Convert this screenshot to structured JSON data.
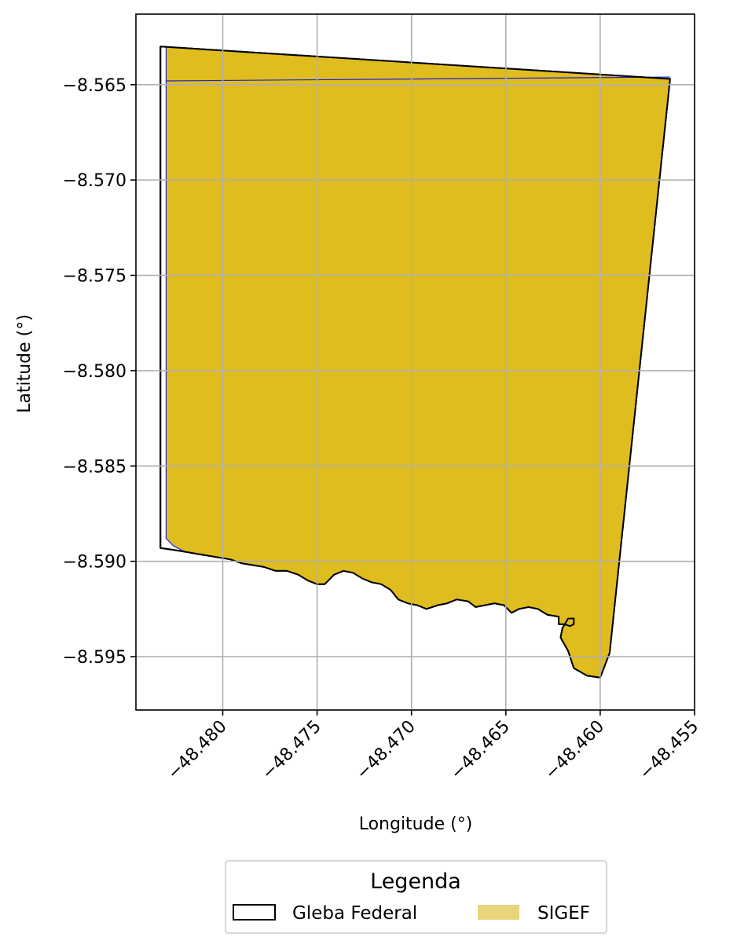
{
  "chart_data": {
    "type": "map",
    "xlabel": "Longitude (°)",
    "ylabel": "Latitude (°)",
    "xlim": [
      -48.4846,
      -48.455
    ],
    "ylim": [
      -8.5978,
      -8.5613
    ],
    "x_ticks": [
      -48.48,
      -48.475,
      -48.47,
      -48.465,
      -48.46,
      -48.455
    ],
    "x_tick_labels": [
      "−48.480",
      "−48.475",
      "−48.470",
      "−48.465",
      "−48.460",
      "−48.455"
    ],
    "y_ticks": [
      -8.565,
      -8.57,
      -8.575,
      -8.58,
      -8.585,
      -8.59,
      -8.595
    ],
    "y_tick_labels": [
      "−8.565",
      "−8.570",
      "−8.575",
      "−8.580",
      "−8.585",
      "−8.590",
      "−8.595"
    ],
    "grid": true,
    "legend": {
      "title": "Legenda",
      "placement": "bottom-center",
      "entries": [
        {
          "label": "Gleba Federal",
          "style": "outline",
          "color": "#000000"
        },
        {
          "label": "SIGEF",
          "style": "filled",
          "color": "#e8d47a"
        }
      ]
    },
    "colors": {
      "sigef_fill": "#dfbd1f",
      "sigef_edge": "#1f1fd8",
      "gleba_edge": "#000000",
      "grid": "#b0b0b0"
    },
    "gleba_federal_polygon": [
      [
        -48.4833,
        -8.563
      ],
      [
        -48.4563,
        -8.5647
      ],
      [
        -48.4595,
        -8.5948
      ],
      [
        -48.46,
        -8.5961
      ],
      [
        -48.4607,
        -8.596
      ],
      [
        -48.4614,
        -8.5956
      ],
      [
        -48.4617,
        -8.5947
      ],
      [
        -48.4621,
        -8.594
      ],
      [
        -48.462,
        -8.5935
      ],
      [
        -48.4617,
        -8.593
      ],
      [
        -48.4614,
        -8.593
      ],
      [
        -48.4614,
        -8.5933
      ],
      [
        -48.4616,
        -8.5934
      ],
      [
        -48.4619,
        -8.5933
      ],
      [
        -48.4622,
        -8.5933
      ],
      [
        -48.4622,
        -8.5929
      ],
      [
        -48.4628,
        -8.5928
      ],
      [
        -48.4633,
        -8.5925
      ],
      [
        -48.4638,
        -8.5924
      ],
      [
        -48.4643,
        -8.5925
      ],
      [
        -48.4647,
        -8.5927
      ],
      [
        -48.4651,
        -8.5923
      ],
      [
        -48.4656,
        -8.5922
      ],
      [
        -48.4661,
        -8.5923
      ],
      [
        -48.4666,
        -8.5924
      ],
      [
        -48.467,
        -8.5921
      ],
      [
        -48.4676,
        -8.592
      ],
      [
        -48.4681,
        -8.5922
      ],
      [
        -48.4686,
        -8.5923
      ],
      [
        -48.4692,
        -8.5925
      ],
      [
        -48.4697,
        -8.5923
      ],
      [
        -48.4702,
        -8.5922
      ],
      [
        -48.4707,
        -8.592
      ],
      [
        -48.4711,
        -8.5915
      ],
      [
        -48.4716,
        -8.5912
      ],
      [
        -48.4721,
        -8.5911
      ],
      [
        -48.4726,
        -8.5909
      ],
      [
        -48.4731,
        -8.5906
      ],
      [
        -48.4736,
        -8.5905
      ],
      [
        -48.4741,
        -8.5907
      ],
      [
        -48.4746,
        -8.5912
      ],
      [
        -48.475,
        -8.5912
      ],
      [
        -48.4755,
        -8.591
      ],
      [
        -48.476,
        -8.5907
      ],
      [
        -48.4766,
        -8.5905
      ],
      [
        -48.4772,
        -8.5905
      ],
      [
        -48.4778,
        -8.5903
      ],
      [
        -48.4784,
        -8.5902
      ],
      [
        -48.479,
        -8.5901
      ],
      [
        -48.4796,
        -8.5899
      ],
      [
        -48.4802,
        -8.5898
      ],
      [
        -48.4808,
        -8.5897
      ],
      [
        -48.4814,
        -8.5896
      ],
      [
        -48.482,
        -8.5895
      ],
      [
        -48.4826,
        -8.5894
      ],
      [
        -48.4833,
        -8.5893
      ]
    ],
    "sigef_polygon": [
      [
        -48.483,
        -8.563
      ],
      [
        -48.4563,
        -8.5647
      ],
      [
        -48.4595,
        -8.5948
      ],
      [
        -48.46,
        -8.5961
      ],
      [
        -48.4607,
        -8.596
      ],
      [
        -48.4614,
        -8.5956
      ],
      [
        -48.4617,
        -8.5947
      ],
      [
        -48.4621,
        -8.594
      ],
      [
        -48.462,
        -8.5935
      ],
      [
        -48.4617,
        -8.593
      ],
      [
        -48.4614,
        -8.593
      ],
      [
        -48.4614,
        -8.5933
      ],
      [
        -48.4616,
        -8.5934
      ],
      [
        -48.4619,
        -8.5933
      ],
      [
        -48.4622,
        -8.5933
      ],
      [
        -48.4622,
        -8.5929
      ],
      [
        -48.4628,
        -8.5928
      ],
      [
        -48.4633,
        -8.5925
      ],
      [
        -48.4638,
        -8.5924
      ],
      [
        -48.4643,
        -8.5925
      ],
      [
        -48.4647,
        -8.5927
      ],
      [
        -48.4651,
        -8.5923
      ],
      [
        -48.4656,
        -8.5922
      ],
      [
        -48.4661,
        -8.5923
      ],
      [
        -48.4666,
        -8.5924
      ],
      [
        -48.467,
        -8.5921
      ],
      [
        -48.4676,
        -8.592
      ],
      [
        -48.4681,
        -8.5922
      ],
      [
        -48.4686,
        -8.5923
      ],
      [
        -48.4692,
        -8.5925
      ],
      [
        -48.4697,
        -8.5923
      ],
      [
        -48.4702,
        -8.5922
      ],
      [
        -48.4707,
        -8.592
      ],
      [
        -48.4711,
        -8.5915
      ],
      [
        -48.4716,
        -8.5912
      ],
      [
        -48.4721,
        -8.5911
      ],
      [
        -48.4726,
        -8.5909
      ],
      [
        -48.4731,
        -8.5906
      ],
      [
        -48.4736,
        -8.5905
      ],
      [
        -48.4741,
        -8.5907
      ],
      [
        -48.4746,
        -8.5912
      ],
      [
        -48.475,
        -8.5912
      ],
      [
        -48.4755,
        -8.591
      ],
      [
        -48.476,
        -8.5907
      ],
      [
        -48.4766,
        -8.5905
      ],
      [
        -48.4772,
        -8.5905
      ],
      [
        -48.4778,
        -8.5903
      ],
      [
        -48.4784,
        -8.5902
      ],
      [
        -48.479,
        -8.5901
      ],
      [
        -48.4796,
        -8.5899
      ],
      [
        -48.4802,
        -8.5898
      ],
      [
        -48.4808,
        -8.5897
      ],
      [
        -48.4814,
        -8.5896
      ],
      [
        -48.482,
        -8.5895
      ],
      [
        -48.4826,
        -8.5892
      ],
      [
        -48.483,
        -8.5888
      ]
    ],
    "sigef_internal_line": [
      [
        -48.483,
        -8.5648
      ],
      [
        -48.4563,
        -8.5646
      ]
    ]
  }
}
